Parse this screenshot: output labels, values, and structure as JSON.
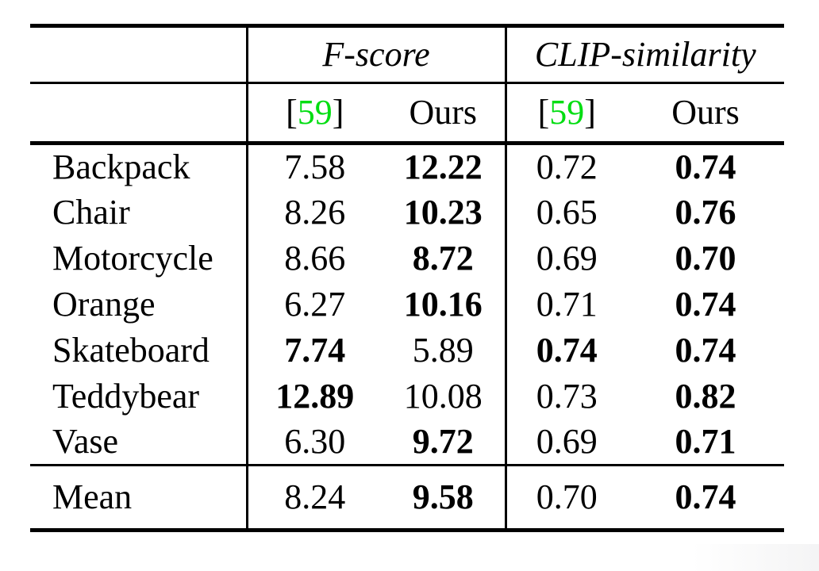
{
  "colors": {
    "citation_green": "#00dd11",
    "text": "#000000",
    "rule": "#000000",
    "background": "#ffffff"
  },
  "table": {
    "group_headers": [
      {
        "label": "F-score"
      },
      {
        "label": "CLIP-similarity"
      }
    ],
    "sub_headers": {
      "ref_open": "[",
      "ref_num": "59",
      "ref_close": "]",
      "ours": "Ours"
    },
    "rows": [
      {
        "label": "Backpack",
        "f_ref": "7.58",
        "f_ref_bold": false,
        "f_ours": "12.22",
        "f_ours_bold": true,
        "c_ref": "0.72",
        "c_ref_bold": false,
        "c_ours": "0.74",
        "c_ours_bold": true
      },
      {
        "label": "Chair",
        "f_ref": "8.26",
        "f_ref_bold": false,
        "f_ours": "10.23",
        "f_ours_bold": true,
        "c_ref": "0.65",
        "c_ref_bold": false,
        "c_ours": "0.76",
        "c_ours_bold": true
      },
      {
        "label": "Motorcycle",
        "f_ref": "8.66",
        "f_ref_bold": false,
        "f_ours": "8.72",
        "f_ours_bold": true,
        "c_ref": "0.69",
        "c_ref_bold": false,
        "c_ours": "0.70",
        "c_ours_bold": true
      },
      {
        "label": "Orange",
        "f_ref": "6.27",
        "f_ref_bold": false,
        "f_ours": "10.16",
        "f_ours_bold": true,
        "c_ref": "0.71",
        "c_ref_bold": false,
        "c_ours": "0.74",
        "c_ours_bold": true
      },
      {
        "label": "Skateboard",
        "f_ref": "7.74",
        "f_ref_bold": true,
        "f_ours": "5.89",
        "f_ours_bold": false,
        "c_ref": "0.74",
        "c_ref_bold": true,
        "c_ours": "0.74",
        "c_ours_bold": true
      },
      {
        "label": "Teddybear",
        "f_ref": "12.89",
        "f_ref_bold": true,
        "f_ours": "10.08",
        "f_ours_bold": false,
        "c_ref": "0.73",
        "c_ref_bold": false,
        "c_ours": "0.82",
        "c_ours_bold": true
      },
      {
        "label": "Vase",
        "f_ref": "6.30",
        "f_ref_bold": false,
        "f_ours": "9.72",
        "f_ours_bold": true,
        "c_ref": "0.69",
        "c_ref_bold": false,
        "c_ours": "0.71",
        "c_ours_bold": true
      }
    ],
    "mean_row": {
      "label": "Mean",
      "f_ref": "8.24",
      "f_ref_bold": false,
      "f_ours": "9.58",
      "f_ours_bold": true,
      "c_ref": "0.70",
      "c_ref_bold": false,
      "c_ours": "0.74",
      "c_ours_bold": true
    }
  },
  "chart_data": {
    "type": "table",
    "title": "",
    "column_groups": [
      "F-score",
      "CLIP-similarity"
    ],
    "columns": [
      "[59] F-score",
      "Ours F-score",
      "[59] CLIP-similarity",
      "Ours CLIP-similarity"
    ],
    "categories": [
      "Backpack",
      "Chair",
      "Motorcycle",
      "Orange",
      "Skateboard",
      "Teddybear",
      "Vase",
      "Mean"
    ],
    "series": [
      {
        "name": "F-score [59]",
        "values": [
          7.58,
          8.26,
          8.66,
          6.27,
          7.74,
          12.89,
          6.3,
          8.24
        ]
      },
      {
        "name": "F-score Ours",
        "values": [
          12.22,
          10.23,
          8.72,
          10.16,
          5.89,
          10.08,
          9.72,
          9.58
        ]
      },
      {
        "name": "CLIP-similarity [59]",
        "values": [
          0.72,
          0.65,
          0.69,
          0.71,
          0.74,
          0.73,
          0.69,
          0.7
        ]
      },
      {
        "name": "CLIP-similarity Ours",
        "values": [
          0.74,
          0.76,
          0.7,
          0.74,
          0.74,
          0.82,
          0.71,
          0.74
        ]
      }
    ]
  }
}
